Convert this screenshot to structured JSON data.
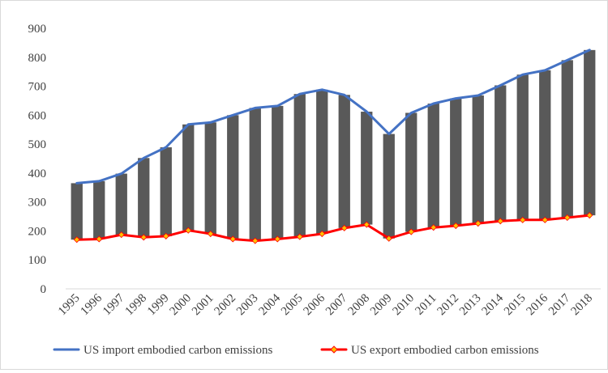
{
  "chart_data": {
    "type": "line",
    "title": "",
    "xlabel": "",
    "ylabel": "",
    "ylim": [
      0,
      900
    ],
    "yticks": [
      0,
      100,
      200,
      300,
      400,
      500,
      600,
      700,
      800,
      900
    ],
    "grid": false,
    "legend_position": "bottom",
    "categories": [
      "1995",
      "1996",
      "1997",
      "1998",
      "1999",
      "2000",
      "2001",
      "2002",
      "2003",
      "2004",
      "2005",
      "2006",
      "2007",
      "2008",
      "2009",
      "2010",
      "2011",
      "2012",
      "2013",
      "2014",
      "2015",
      "2016",
      "2017",
      "2018"
    ],
    "series": [
      {
        "name": "US import embodied carbon emissions",
        "color": "#4472C4",
        "marker": "none",
        "values": [
          365,
          372,
          398,
          452,
          489,
          568,
          575,
          600,
          625,
          632,
          673,
          688,
          670,
          612,
          535,
          608,
          640,
          658,
          668,
          703,
          740,
          755,
          790,
          825
        ]
      },
      {
        "name": "US export embodied carbon emissions",
        "color": "#FF0000",
        "marker": "diamond",
        "marker_color": "#FFC000",
        "values": [
          170,
          172,
          187,
          178,
          182,
          202,
          190,
          172,
          166,
          172,
          180,
          190,
          210,
          222,
          174,
          197,
          212,
          218,
          226,
          234,
          238,
          238,
          246,
          254
        ]
      }
    ],
    "range_bars": {
      "name": "gap",
      "color": "#595959",
      "from_series": 1,
      "to_series": 0
    }
  }
}
